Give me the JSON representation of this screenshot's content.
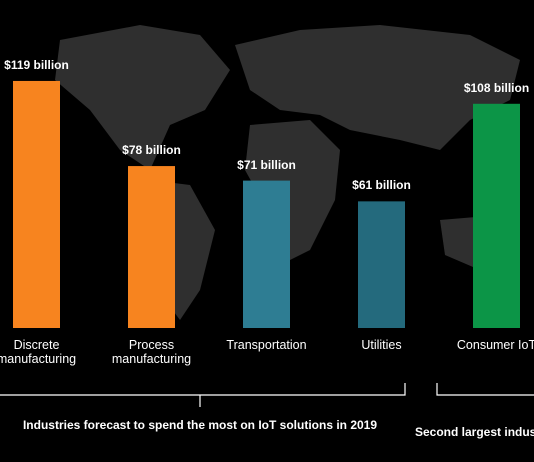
{
  "chart_data": {
    "type": "bar",
    "categories": [
      "Discrete manufacturing",
      "Process manufacturing",
      "Transportation",
      "Utilities",
      "Consumer IoT"
    ],
    "values": [
      119,
      78,
      71,
      61,
      108
    ],
    "value_labels": [
      "$119 billion",
      "$78 billion",
      "$71 billion",
      "$61 billion",
      "$108 billion"
    ],
    "colors": [
      "#f7841f",
      "#f7841f",
      "#2e7d93",
      "#246a7d",
      "#0c9547"
    ],
    "annotations": [
      "Industries forecast to spend the most on IoT solutions in 2019",
      "Second largest indus"
    ]
  }
}
